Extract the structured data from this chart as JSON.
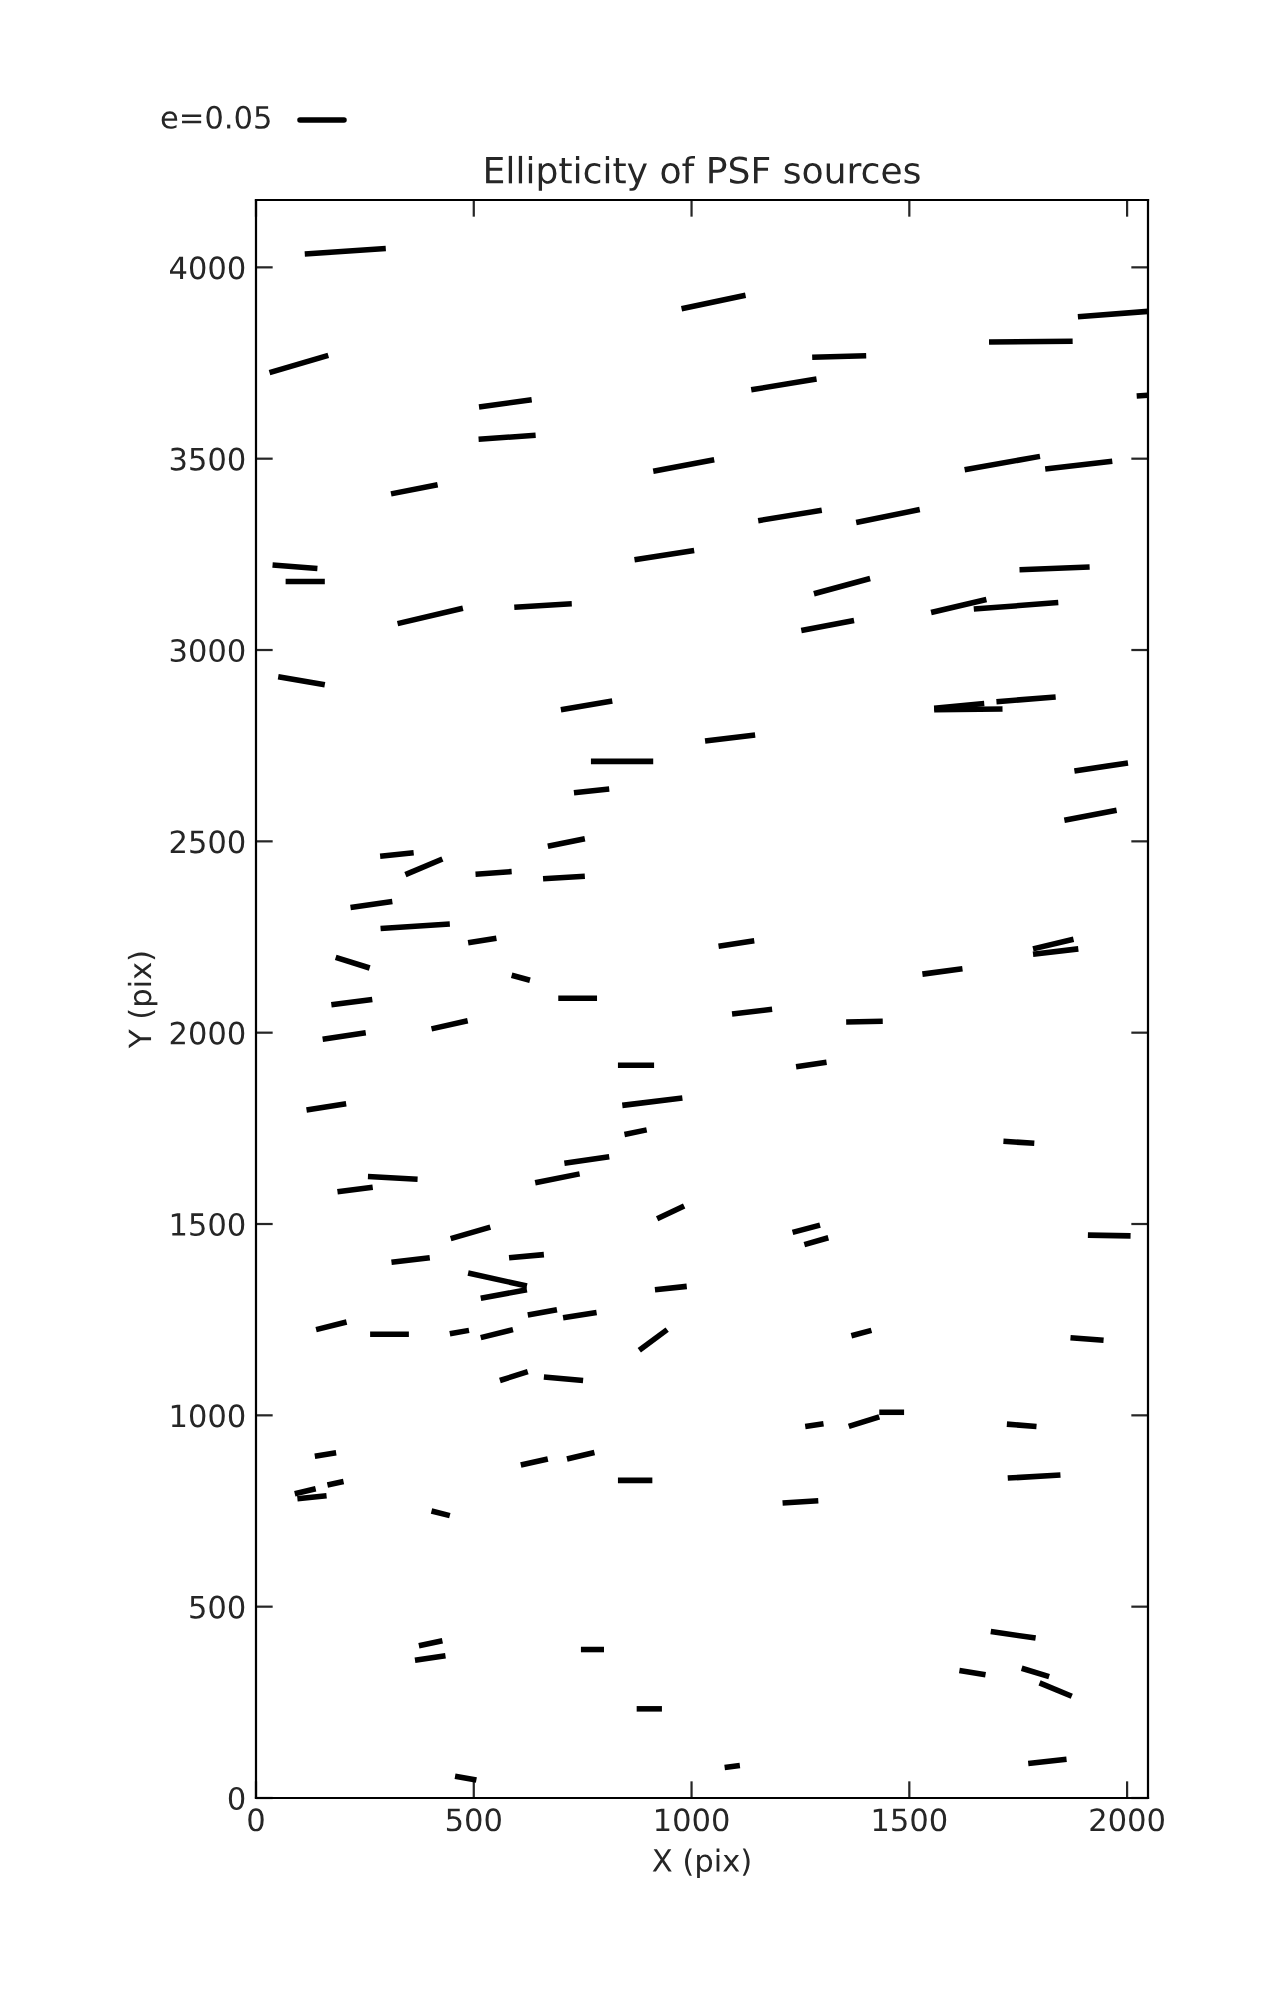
{
  "chart_data": {
    "type": "line",
    "title": "Ellipticity of PSF sources",
    "xlabel": "X (pix)",
    "ylabel": "Y (pix)",
    "annotations": [
      "e=0.05"
    ],
    "color": "#000000",
    "grid": false,
    "marker": "none",
    "line_style": "solid",
    "xlim": [
      0,
      2048
    ],
    "ylim": [
      0,
      4176
    ],
    "xticks": [
      0,
      500,
      1000,
      1500,
      2000
    ],
    "yticks": [
      0,
      500,
      1000,
      1500,
      2000,
      2500,
      3000,
      3500,
      4000
    ],
    "series": [
      {
        "x": [
          112,
          298
        ],
        "values": [
          4035,
          4049
        ]
      },
      {
        "x": [
          31,
          166
        ],
        "values": [
          3725,
          3770
        ]
      },
      {
        "x": [
          977,
          1124
        ],
        "values": [
          3892,
          3927
        ]
      },
      {
        "x": [
          1887,
          2048
        ],
        "values": [
          3871,
          3885
        ]
      },
      {
        "x": [
          1683,
          1875
        ],
        "values": [
          3805,
          3807
        ]
      },
      {
        "x": [
          1277,
          1401
        ],
        "values": [
          3765,
          3769
        ]
      },
      {
        "x": [
          1137,
          1287
        ],
        "values": [
          3680,
          3708
        ]
      },
      {
        "x": [
          2022,
          2048
        ],
        "values": [
          3664,
          3666
        ]
      },
      {
        "x": [
          512,
          633
        ],
        "values": [
          3635,
          3654
        ]
      },
      {
        "x": [
          511,
          642
        ],
        "values": [
          3551,
          3561
        ]
      },
      {
        "x": [
          1627,
          1800
        ],
        "values": [
          3471,
          3506
        ]
      },
      {
        "x": [
          1812,
          1966
        ],
        "values": [
          3473,
          3493
        ]
      },
      {
        "x": [
          912,
          1052
        ],
        "values": [
          3467,
          3497
        ]
      },
      {
        "x": [
          310,
          417
        ],
        "values": [
          3408,
          3432
        ]
      },
      {
        "x": [
          1153,
          1299
        ],
        "values": [
          3338,
          3365
        ]
      },
      {
        "x": [
          1378,
          1524
        ],
        "values": [
          3333,
          3367
        ]
      },
      {
        "x": [
          38,
          141
        ],
        "values": [
          3222,
          3213
        ]
      },
      {
        "x": [
          68,
          158
        ],
        "values": [
          3179,
          3179
        ]
      },
      {
        "x": [
          869,
          1006
        ],
        "values": [
          3236,
          3260
        ]
      },
      {
        "x": [
          1753,
          1914
        ],
        "values": [
          3210,
          3217
        ]
      },
      {
        "x": [
          1281,
          1410
        ],
        "values": [
          3147,
          3187
        ]
      },
      {
        "x": [
          325,
          475
        ],
        "values": [
          3069,
          3109
        ]
      },
      {
        "x": [
          593,
          725
        ],
        "values": [
          3112,
          3121
        ]
      },
      {
        "x": [
          1550,
          1677
        ],
        "values": [
          3098,
          3132
        ]
      },
      {
        "x": [
          1648,
          1842
        ],
        "values": [
          3107,
          3124
        ]
      },
      {
        "x": [
          1252,
          1373
        ],
        "values": [
          3051,
          3077
        ]
      },
      {
        "x": [
          51,
          158
        ],
        "values": [
          2930,
          2909
        ]
      },
      {
        "x": [
          700,
          818
        ],
        "values": [
          2844,
          2867
        ]
      },
      {
        "x": [
          1557,
          1672
        ],
        "values": [
          2848,
          2860
        ]
      },
      {
        "x": [
          1557,
          1714
        ],
        "values": [
          2844,
          2846
        ]
      },
      {
        "x": [
          1700,
          1836
        ],
        "values": [
          2865,
          2877
        ]
      },
      {
        "x": [
          1031,
          1146
        ],
        "values": [
          2762,
          2778
        ]
      },
      {
        "x": [
          769,
          912
        ],
        "values": [
          2709,
          2709
        ]
      },
      {
        "x": [
          1879,
          2002
        ],
        "values": [
          2684,
          2705
        ]
      },
      {
        "x": [
          730,
          811
        ],
        "values": [
          2627,
          2637
        ]
      },
      {
        "x": [
          1856,
          1976
        ],
        "values": [
          2555,
          2581
        ]
      },
      {
        "x": [
          285,
          362
        ],
        "values": [
          2461,
          2470
        ]
      },
      {
        "x": [
          343,
          428
        ],
        "values": [
          2413,
          2454
        ]
      },
      {
        "x": [
          670,
          755
        ],
        "values": [
          2487,
          2507
        ]
      },
      {
        "x": [
          504,
          587
        ],
        "values": [
          2414,
          2421
        ]
      },
      {
        "x": [
          659,
          755
        ],
        "values": [
          2402,
          2409
        ]
      },
      {
        "x": [
          217,
          313
        ],
        "values": [
          2327,
          2343
        ]
      },
      {
        "x": [
          286,
          445
        ],
        "values": [
          2272,
          2284
        ]
      },
      {
        "x": [
          487,
          552
        ],
        "values": [
          2235,
          2247
        ]
      },
      {
        "x": [
          1062,
          1144
        ],
        "values": [
          2226,
          2240
        ]
      },
      {
        "x": [
          1784,
          1877
        ],
        "values": [
          2219,
          2244
        ]
      },
      {
        "x": [
          1784,
          1888
        ],
        "values": [
          2205,
          2219
        ]
      },
      {
        "x": [
          183,
          261
        ],
        "values": [
          2197,
          2169
        ]
      },
      {
        "x": [
          587,
          629
        ],
        "values": [
          2150,
          2137
        ]
      },
      {
        "x": [
          1530,
          1622
        ],
        "values": [
          2153,
          2167
        ]
      },
      {
        "x": [
          173,
          267
        ],
        "values": [
          2073,
          2087
        ]
      },
      {
        "x": [
          694,
          783
        ],
        "values": [
          2090,
          2090
        ]
      },
      {
        "x": [
          1093,
          1185
        ],
        "values": [
          2049,
          2061
        ]
      },
      {
        "x": [
          153,
          252
        ],
        "values": [
          1983,
          2000
        ]
      },
      {
        "x": [
          403,
          486
        ],
        "values": [
          2010,
          2031
        ]
      },
      {
        "x": [
          1355,
          1439
        ],
        "values": [
          2028,
          2030
        ]
      },
      {
        "x": [
          831,
          914
        ],
        "values": [
          1915,
          1915
        ]
      },
      {
        "x": [
          1240,
          1310
        ],
        "values": [
          1911,
          1923
        ]
      },
      {
        "x": [
          841,
          979
        ],
        "values": [
          1810,
          1829
        ]
      },
      {
        "x": [
          116,
          207
        ],
        "values": [
          1798,
          1814
        ]
      },
      {
        "x": [
          846,
          897
        ],
        "values": [
          1734,
          1746
        ]
      },
      {
        "x": [
          1716,
          1787
        ],
        "values": [
          1716,
          1711
        ]
      },
      {
        "x": [
          257,
          371
        ],
        "values": [
          1624,
          1617
        ]
      },
      {
        "x": [
          187,
          268
        ],
        "values": [
          1584,
          1596
        ]
      },
      {
        "x": [
          708,
          811
        ],
        "values": [
          1659,
          1676
        ]
      },
      {
        "x": [
          641,
          743
        ],
        "values": [
          1608,
          1631
        ]
      },
      {
        "x": [
          921,
          983
        ],
        "values": [
          1514,
          1547
        ]
      },
      {
        "x": [
          447,
          538
        ],
        "values": [
          1462,
          1492
        ]
      },
      {
        "x": [
          1232,
          1295
        ],
        "values": [
          1478,
          1497
        ]
      },
      {
        "x": [
          1259,
          1314
        ],
        "values": [
          1446,
          1464
        ]
      },
      {
        "x": [
          1910,
          2008
        ],
        "values": [
          1471,
          1469
        ]
      },
      {
        "x": [
          311,
          399
        ],
        "values": [
          1400,
          1412
        ]
      },
      {
        "x": [
          581,
          661
        ],
        "values": [
          1412,
          1420
        ]
      },
      {
        "x": [
          487,
          622
        ],
        "values": [
          1372,
          1338
        ]
      },
      {
        "x": [
          516,
          622
        ],
        "values": [
          1306,
          1328
        ]
      },
      {
        "x": [
          916,
          989
        ],
        "values": [
          1328,
          1337
        ]
      },
      {
        "x": [
          138,
          208
        ],
        "values": [
          1224,
          1244
        ]
      },
      {
        "x": [
          262,
          351
        ],
        "values": [
          1212,
          1212
        ]
      },
      {
        "x": [
          445,
          489
        ],
        "values": [
          1213,
          1222
        ]
      },
      {
        "x": [
          516,
          590
        ],
        "values": [
          1203,
          1224
        ]
      },
      {
        "x": [
          624,
          691
        ],
        "values": [
          1262,
          1276
        ]
      },
      {
        "x": [
          705,
          782
        ],
        "values": [
          1255,
          1269
        ]
      },
      {
        "x": [
          880,
          944
        ],
        "values": [
          1170,
          1224
        ]
      },
      {
        "x": [
          1367,
          1413
        ],
        "values": [
          1208,
          1222
        ]
      },
      {
        "x": [
          1870,
          1946
        ],
        "values": [
          1203,
          1196
        ]
      },
      {
        "x": [
          560,
          624
        ],
        "values": [
          1091,
          1114
        ]
      },
      {
        "x": [
          661,
          751
        ],
        "values": [
          1100,
          1091
        ]
      },
      {
        "x": [
          1261,
          1303
        ],
        "values": [
          971,
          978
        ]
      },
      {
        "x": [
          1361,
          1431
        ],
        "values": [
          971,
          996
        ]
      },
      {
        "x": [
          1431,
          1488
        ],
        "values": [
          1008,
          1008
        ]
      },
      {
        "x": [
          1724,
          1792
        ],
        "values": [
          977,
          971
        ]
      },
      {
        "x": [
          135,
          184
        ],
        "values": [
          893,
          902
        ]
      },
      {
        "x": [
          608,
          670
        ],
        "values": [
          870,
          886
        ]
      },
      {
        "x": [
          714,
          777
        ],
        "values": [
          886,
          903
        ]
      },
      {
        "x": [
          831,
          910
        ],
        "values": [
          830,
          830
        ]
      },
      {
        "x": [
          1726,
          1847
        ],
        "values": [
          836,
          844
        ]
      },
      {
        "x": [
          89,
          137
        ],
        "values": [
          795,
          808
        ]
      },
      {
        "x": [
          95,
          162
        ],
        "values": [
          782,
          790
        ]
      },
      {
        "x": [
          164,
          201
        ],
        "values": [
          818,
          827
        ]
      },
      {
        "x": [
          1209,
          1291
        ],
        "values": [
          771,
          777
        ]
      },
      {
        "x": [
          403,
          445
        ],
        "values": [
          750,
          738
        ]
      },
      {
        "x": [
          374,
          428
        ],
        "values": [
          398,
          411
        ]
      },
      {
        "x": [
          365,
          435
        ],
        "values": [
          360,
          372
        ]
      },
      {
        "x": [
          746,
          799
        ],
        "values": [
          388,
          388
        ]
      },
      {
        "x": [
          1687,
          1790
        ],
        "values": [
          435,
          418
        ]
      },
      {
        "x": [
          1615,
          1675
        ],
        "values": [
          333,
          322
        ]
      },
      {
        "x": [
          1758,
          1821
        ],
        "values": [
          339,
          317
        ]
      },
      {
        "x": [
          1799,
          1873
        ],
        "values": [
          301,
          266
        ]
      },
      {
        "x": [
          874,
          932
        ],
        "values": [
          233,
          233
        ]
      },
      {
        "x": [
          1076,
          1111
        ],
        "values": [
          80,
          85
        ]
      },
      {
        "x": [
          1773,
          1861
        ],
        "values": [
          90,
          101
        ]
      },
      {
        "x": [
          457,
          506
        ],
        "values": [
          57,
          47
        ]
      }
    ]
  }
}
